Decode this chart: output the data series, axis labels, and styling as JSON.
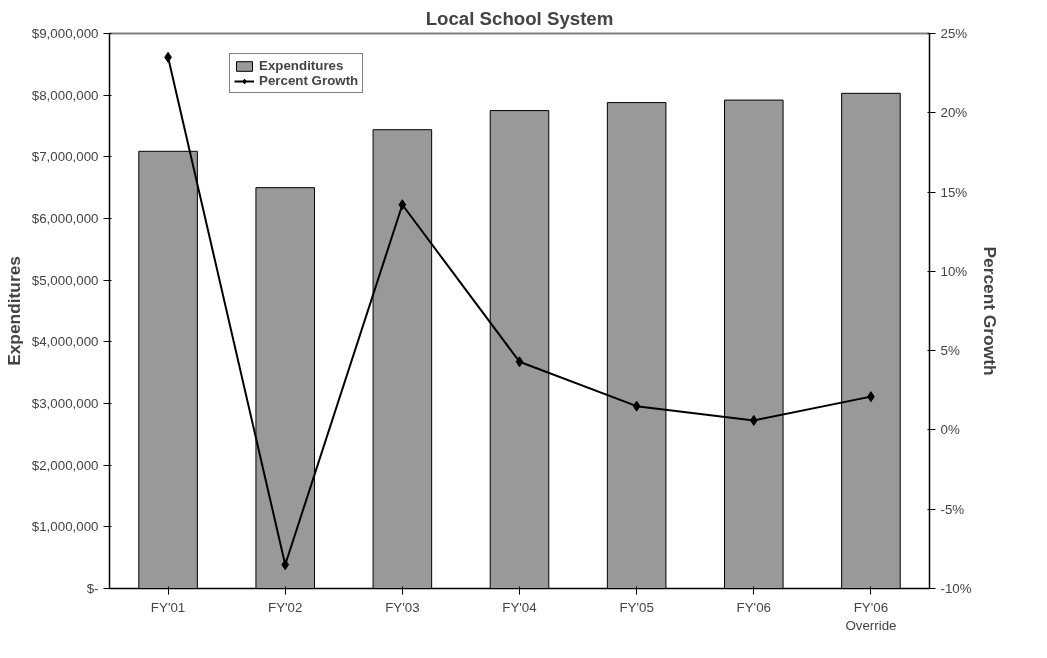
{
  "chart_data": {
    "type": "bar",
    "title": "Local School System",
    "categories": [
      "FY'01",
      "FY'02",
      "FY'03",
      "FY'04",
      "FY'05",
      "FY'06",
      "FY'06\nOverride"
    ],
    "series": [
      {
        "name": "Expenditures",
        "color": "#999999",
        "values": [
          7090000,
          6500000,
          7440000,
          7750000,
          7880000,
          7920000,
          8030000
        ]
      },
      {
        "name": "Percent Growth",
        "type": "line",
        "axis": "y2",
        "color": "#000000",
        "marker": "diamond",
        "values": [
          23.5,
          -8.5,
          14.2,
          4.3,
          1.5,
          0.6,
          2.1
        ]
      }
    ],
    "ylabel": "Expenditures",
    "y2label": "Percent Growth",
    "ylim": [
      0,
      9000000
    ],
    "yticks": [
      {
        "value": 0,
        "label": "$-"
      },
      {
        "value": 1000000,
        "label": "$1,000,000"
      },
      {
        "value": 2000000,
        "label": "$2,000,000"
      },
      {
        "value": 3000000,
        "label": "$3,000,000"
      },
      {
        "value": 4000000,
        "label": "$4,000,000"
      },
      {
        "value": 5000000,
        "label": "$5,000,000"
      },
      {
        "value": 6000000,
        "label": "$6,000,000"
      },
      {
        "value": 7000000,
        "label": "$7,000,000"
      },
      {
        "value": 8000000,
        "label": "$8,000,000"
      },
      {
        "value": 9000000,
        "label": "$9,000,000"
      }
    ],
    "y2lim": [
      -10,
      25
    ],
    "y2ticks": [
      {
        "value": -10,
        "label": "-10%"
      },
      {
        "value": -5,
        "label": "-5%"
      },
      {
        "value": 0,
        "label": "0%"
      },
      {
        "value": 5,
        "label": "5%"
      },
      {
        "value": 10,
        "label": "10%"
      },
      {
        "value": 15,
        "label": "15%"
      },
      {
        "value": 20,
        "label": "20%"
      },
      {
        "value": 25,
        "label": "25%"
      }
    ],
    "legend": "top left"
  }
}
